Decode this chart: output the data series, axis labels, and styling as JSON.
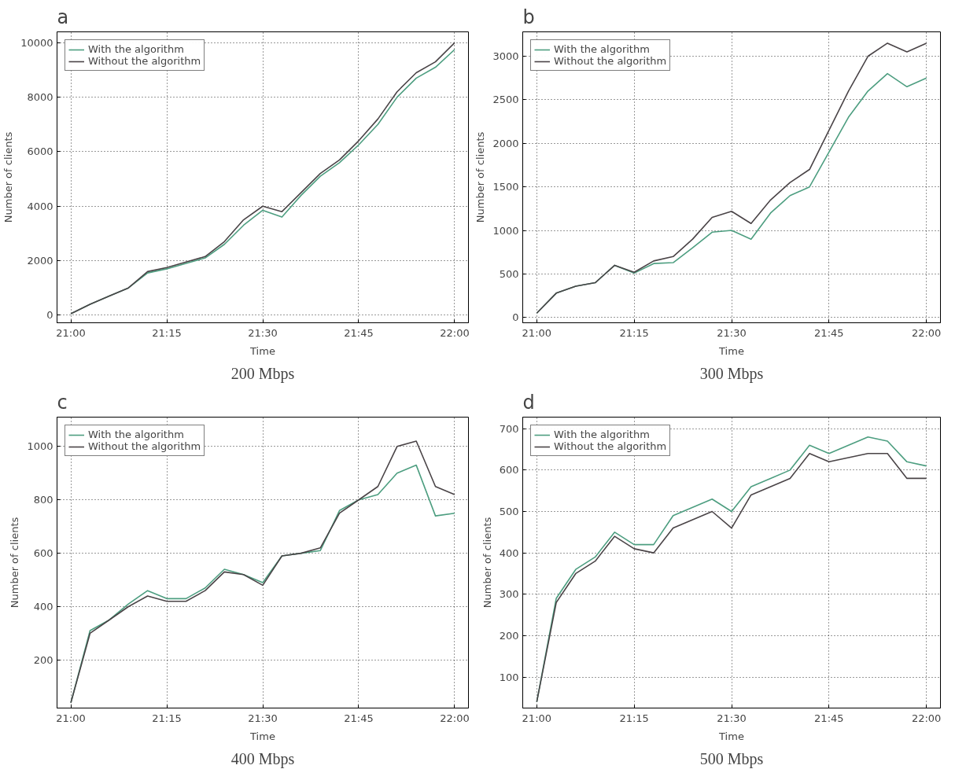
{
  "chart_data": [
    {
      "type": "line",
      "title": "a",
      "annotations": [
        "200 Mbps"
      ],
      "xlabel": "Time",
      "ylabel": "Number of clients",
      "x": [
        21,
        21.05,
        21.1,
        21.15,
        21.2,
        21.25,
        21.3,
        21.35,
        21.4,
        21.45,
        21.5,
        21.55,
        21.6,
        21.65,
        21.7,
        21.75,
        21.8,
        21.85,
        21.9,
        21.95,
        22
      ],
      "series": [
        {
          "name": "With the algorithm",
          "color": "#4d9e80",
          "values": [
            50,
            400,
            700,
            1000,
            1550,
            1700,
            1900,
            2100,
            2600,
            3300,
            3850,
            3600,
            4400,
            5100,
            5600,
            6250,
            7000,
            8000,
            8700,
            9100,
            9750
          ]
        },
        {
          "name": "Without the algorithm",
          "color": "#4a4447",
          "values": [
            50,
            400,
            700,
            1000,
            1600,
            1750,
            1950,
            2150,
            2700,
            3500,
            4000,
            3800,
            4500,
            5200,
            5700,
            6400,
            7200,
            8200,
            8900,
            9300,
            10000
          ]
        }
      ],
      "xlim": [
        20.964,
        22.036
      ],
      "ylim": [
        -280,
        10400
      ],
      "xticks": [
        {
          "value": 21,
          "label": "21:00"
        },
        {
          "value": 21.25,
          "label": "21:15"
        },
        {
          "value": 21.5,
          "label": "21:30"
        },
        {
          "value": 21.75,
          "label": "21:45"
        },
        {
          "value": 22,
          "label": "22:00"
        }
      ],
      "yticks": [
        0,
        2000,
        4000,
        6000,
        8000,
        10000
      ],
      "grid": true,
      "legend": "top left",
      "line_style": "solid",
      "marker": "none"
    },
    {
      "type": "line",
      "title": "b",
      "annotations": [
        "300 Mbps"
      ],
      "xlabel": "Time",
      "ylabel": "Number of clients",
      "x": [
        21,
        21.05,
        21.1,
        21.15,
        21.2,
        21.25,
        21.3,
        21.35,
        21.4,
        21.45,
        21.5,
        21.55,
        21.6,
        21.65,
        21.7,
        21.75,
        21.8,
        21.85,
        21.9,
        21.95,
        22
      ],
      "series": [
        {
          "name": "With the algorithm",
          "color": "#4d9e80",
          "values": [
            50,
            280,
            360,
            400,
            600,
            510,
            620,
            630,
            800,
            980,
            1000,
            900,
            1200,
            1400,
            1500,
            1900,
            2300,
            2600,
            2800,
            2650,
            2750
          ]
        },
        {
          "name": "Without the algorithm",
          "color": "#4a4447",
          "values": [
            50,
            280,
            360,
            400,
            600,
            520,
            650,
            700,
            900,
            1150,
            1220,
            1080,
            1350,
            1550,
            1700,
            2150,
            2600,
            3000,
            3150,
            3050,
            3150
          ]
        }
      ],
      "xlim": [
        20.964,
        22.036
      ],
      "ylim": [
        -60,
        3280
      ],
      "xticks": [
        {
          "value": 21,
          "label": "21:00"
        },
        {
          "value": 21.25,
          "label": "21:15"
        },
        {
          "value": 21.5,
          "label": "21:30"
        },
        {
          "value": 21.75,
          "label": "21:45"
        },
        {
          "value": 22,
          "label": "22:00"
        }
      ],
      "yticks": [
        0,
        500,
        1000,
        1500,
        2000,
        2500,
        3000
      ],
      "grid": true,
      "legend": "top left",
      "line_style": "solid",
      "marker": "none"
    },
    {
      "type": "line",
      "title": "c",
      "annotations": [
        "400 Mbps"
      ],
      "xlabel": "Time",
      "ylabel": "Number of clients",
      "x": [
        21,
        21.05,
        21.1,
        21.15,
        21.2,
        21.25,
        21.3,
        21.35,
        21.4,
        21.45,
        21.5,
        21.55,
        21.6,
        21.65,
        21.7,
        21.75,
        21.8,
        21.85,
        21.9,
        21.95,
        22
      ],
      "series": [
        {
          "name": "With the algorithm",
          "color": "#4d9e80",
          "values": [
            40,
            310,
            350,
            410,
            460,
            430,
            430,
            470,
            540,
            520,
            490,
            590,
            600,
            610,
            760,
            800,
            820,
            900,
            930,
            740,
            750
          ]
        },
        {
          "name": "Without the algorithm",
          "color": "#4a4447",
          "values": [
            40,
            300,
            350,
            400,
            440,
            420,
            420,
            460,
            530,
            520,
            480,
            590,
            600,
            620,
            750,
            800,
            850,
            1000,
            1020,
            850,
            820
          ]
        }
      ],
      "xlim": [
        20.964,
        22.036
      ],
      "ylim": [
        20,
        1110
      ],
      "xticks": [
        {
          "value": 21,
          "label": "21:00"
        },
        {
          "value": 21.25,
          "label": "21:15"
        },
        {
          "value": 21.5,
          "label": "21:30"
        },
        {
          "value": 21.75,
          "label": "21:45"
        },
        {
          "value": 22,
          "label": "22:00"
        }
      ],
      "yticks": [
        200,
        400,
        600,
        800,
        1000
      ],
      "grid": true,
      "legend": "top left",
      "line_style": "solid",
      "marker": "none"
    },
    {
      "type": "line",
      "title": "d",
      "annotations": [
        "500 Mbps"
      ],
      "xlabel": "Time",
      "ylabel": "Number of clients",
      "x": [
        21,
        21.05,
        21.1,
        21.15,
        21.2,
        21.25,
        21.3,
        21.35,
        21.4,
        21.45,
        21.5,
        21.55,
        21.6,
        21.65,
        21.7,
        21.75,
        21.8,
        21.85,
        21.9,
        21.95,
        22
      ],
      "series": [
        {
          "name": "With the algorithm",
          "color": "#4d9e80",
          "values": [
            40,
            290,
            360,
            390,
            450,
            420,
            420,
            490,
            510,
            530,
            500,
            560,
            580,
            600,
            660,
            640,
            660,
            680,
            670,
            620,
            610
          ]
        },
        {
          "name": "Without the algorithm",
          "color": "#4a4447",
          "values": [
            40,
            280,
            350,
            380,
            440,
            410,
            400,
            460,
            480,
            500,
            460,
            540,
            560,
            580,
            640,
            620,
            630,
            640,
            640,
            580,
            580
          ]
        }
      ],
      "xlim": [
        20.964,
        22.036
      ],
      "ylim": [
        25,
        728
      ],
      "xticks": [
        {
          "value": 21,
          "label": "21:00"
        },
        {
          "value": 21.25,
          "label": "21:15"
        },
        {
          "value": 21.5,
          "label": "21:30"
        },
        {
          "value": 21.75,
          "label": "21:45"
        },
        {
          "value": 22,
          "label": "22:00"
        }
      ],
      "yticks": [
        100,
        200,
        300,
        400,
        500,
        600,
        700
      ],
      "grid": true,
      "legend": "top left",
      "line_style": "solid",
      "marker": "none"
    }
  ]
}
